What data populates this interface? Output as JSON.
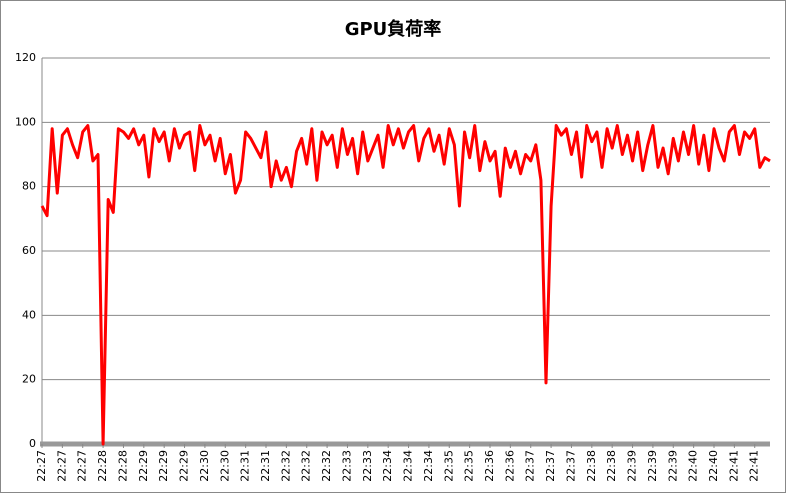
{
  "chart_data": {
    "type": "line",
    "title": "GPU負荷率",
    "categories": [
      "22:27",
      null,
      null,
      null,
      "22:27",
      null,
      null,
      null,
      "22:27",
      null,
      null,
      null,
      "22:28",
      null,
      null,
      null,
      "22:28",
      null,
      null,
      null,
      "22:29",
      null,
      null,
      null,
      "22:29",
      null,
      null,
      null,
      "22:29",
      null,
      null,
      null,
      "22:30",
      null,
      null,
      null,
      "22:30",
      null,
      null,
      null,
      "22:31",
      null,
      null,
      null,
      "22:31",
      null,
      null,
      null,
      "22:32",
      null,
      null,
      null,
      "22:32",
      null,
      null,
      null,
      "22:32",
      null,
      null,
      null,
      "22:33",
      null,
      null,
      null,
      "22:33",
      null,
      null,
      null,
      "22:34",
      null,
      null,
      null,
      "22:34",
      null,
      null,
      null,
      "22:34",
      null,
      null,
      null,
      "22:35",
      null,
      null,
      null,
      "22:35",
      null,
      null,
      null,
      "22:36",
      null,
      null,
      null,
      "22:36",
      null,
      null,
      null,
      "22:37",
      null,
      null,
      null,
      "22:37",
      null,
      null,
      null,
      "22:37",
      null,
      null,
      null,
      "22:38",
      null,
      null,
      null,
      "22:38",
      null,
      null,
      null,
      "22:39",
      null,
      null,
      null,
      "22:39",
      null,
      null,
      null,
      "22:39",
      null,
      null,
      null,
      "22:40",
      null,
      null,
      null,
      "22:40",
      null,
      null,
      null,
      "22:41",
      null,
      null,
      null,
      "22:41",
      null,
      null,
      null
    ],
    "series": [
      {
        "color": "#ff0000",
        "values": [
          74,
          71,
          98,
          78,
          96,
          98,
          93,
          89,
          97,
          99,
          88,
          90,
          0,
          76,
          72,
          98,
          97,
          95,
          98,
          93,
          96,
          83,
          98,
          94,
          97,
          88,
          98,
          92,
          96,
          97,
          85,
          99,
          93,
          96,
          88,
          95,
          84,
          90,
          78,
          82,
          97,
          95,
          92,
          89,
          97,
          80,
          88,
          82,
          86,
          80,
          91,
          95,
          87,
          98,
          82,
          97,
          93,
          96,
          86,
          98,
          90,
          95,
          84,
          97,
          88,
          92,
          96,
          86,
          99,
          93,
          98,
          92,
          97,
          99,
          88,
          95,
          98,
          91,
          96,
          87,
          98,
          93,
          74,
          97,
          89,
          99,
          85,
          94,
          88,
          91,
          77,
          92,
          86,
          91,
          84,
          90,
          88,
          93,
          82,
          19,
          74,
          99,
          96,
          98,
          90,
          97,
          83,
          99,
          94,
          97,
          86,
          98,
          92,
          99,
          90,
          96,
          88,
          97,
          85,
          93,
          99,
          86,
          92,
          84,
          95,
          88,
          97,
          90,
          99,
          87,
          96,
          85,
          98,
          92,
          88,
          97,
          99,
          90,
          97,
          95,
          98,
          86,
          89,
          88
        ]
      }
    ],
    "ylim": [
      0,
      120
    ],
    "yticks": [
      0,
      20,
      40,
      60,
      80,
      100,
      120
    ],
    "grid": true
  }
}
